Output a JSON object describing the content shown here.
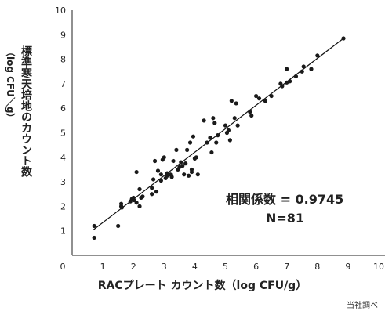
{
  "chart_data": {
    "type": "scatter",
    "xlabel": "RACプレート カウント数（log CFU/g）",
    "ylabel_main": "標準寒天培地のカウント数",
    "ylabel_unit": "（log CFU／g）",
    "xlim": [
      0,
      10
    ],
    "ylim": [
      0,
      10
    ],
    "xticks": [
      "0",
      "1",
      "2",
      "3",
      "4",
      "5",
      "6",
      "7",
      "8",
      "9",
      "10"
    ],
    "yticks": [
      "1",
      "2",
      "3",
      "4",
      "5",
      "6",
      "7",
      "8",
      "9",
      "10"
    ],
    "trendline": {
      "x": [
        0.7,
        8.85
      ],
      "y": [
        1.05,
        8.85
      ]
    },
    "annotation": {
      "correlation": "相関係数 = 0.9745",
      "n": "N=81"
    },
    "source": "当社調べ",
    "grid": false,
    "points": [
      [
        0.72,
        1.2
      ],
      [
        0.72,
        0.72
      ],
      [
        1.5,
        1.2
      ],
      [
        1.6,
        2.1
      ],
      [
        1.6,
        2.0
      ],
      [
        1.62,
        1.95
      ],
      [
        1.9,
        2.2
      ],
      [
        1.95,
        2.3
      ],
      [
        2.0,
        2.35
      ],
      [
        2.02,
        2.25
      ],
      [
        2.1,
        3.4
      ],
      [
        2.1,
        2.15
      ],
      [
        2.2,
        2.0
      ],
      [
        2.2,
        2.7
      ],
      [
        2.25,
        2.35
      ],
      [
        2.3,
        2.4
      ],
      [
        2.6,
        2.5
      ],
      [
        2.6,
        2.75
      ],
      [
        2.65,
        3.1
      ],
      [
        2.7,
        3.85
      ],
      [
        2.75,
        2.6
      ],
      [
        2.8,
        3.45
      ],
      [
        2.9,
        3.3
      ],
      [
        2.9,
        3.05
      ],
      [
        2.95,
        3.9
      ],
      [
        3.0,
        4.0
      ],
      [
        3.05,
        3.15
      ],
      [
        3.1,
        3.25
      ],
      [
        3.1,
        3.35
      ],
      [
        3.2,
        3.3
      ],
      [
        3.25,
        3.2
      ],
      [
        3.3,
        3.85
      ],
      [
        3.4,
        4.3
      ],
      [
        3.45,
        3.5
      ],
      [
        3.5,
        3.6
      ],
      [
        3.55,
        3.8
      ],
      [
        3.6,
        3.65
      ],
      [
        3.65,
        3.3
      ],
      [
        3.7,
        3.75
      ],
      [
        3.75,
        4.3
      ],
      [
        3.8,
        3.25
      ],
      [
        3.85,
        4.6
      ],
      [
        3.9,
        3.4
      ],
      [
        3.9,
        3.5
      ],
      [
        3.95,
        4.85
      ],
      [
        4.0,
        3.95
      ],
      [
        4.05,
        4.0
      ],
      [
        4.1,
        3.3
      ],
      [
        4.3,
        5.5
      ],
      [
        4.4,
        4.6
      ],
      [
        4.5,
        4.8
      ],
      [
        4.55,
        4.2
      ],
      [
        4.6,
        5.6
      ],
      [
        4.65,
        5.4
      ],
      [
        4.7,
        4.6
      ],
      [
        4.75,
        4.9
      ],
      [
        5.0,
        5.3
      ],
      [
        5.05,
        5.0
      ],
      [
        5.1,
        5.1
      ],
      [
        5.15,
        4.7
      ],
      [
        5.2,
        6.3
      ],
      [
        5.3,
        5.6
      ],
      [
        5.35,
        6.2
      ],
      [
        5.4,
        5.3
      ],
      [
        5.8,
        5.85
      ],
      [
        5.85,
        5.7
      ],
      [
        6.0,
        6.5
      ],
      [
        6.1,
        6.4
      ],
      [
        6.3,
        6.3
      ],
      [
        6.5,
        6.5
      ],
      [
        6.8,
        7.0
      ],
      [
        6.85,
        6.9
      ],
      [
        7.0,
        7.05
      ],
      [
        7.0,
        7.6
      ],
      [
        7.1,
        7.1
      ],
      [
        7.3,
        7.3
      ],
      [
        7.5,
        7.5
      ],
      [
        7.55,
        7.7
      ],
      [
        7.8,
        7.6
      ],
      [
        8.0,
        8.15
      ],
      [
        8.85,
        8.85
      ]
    ]
  }
}
